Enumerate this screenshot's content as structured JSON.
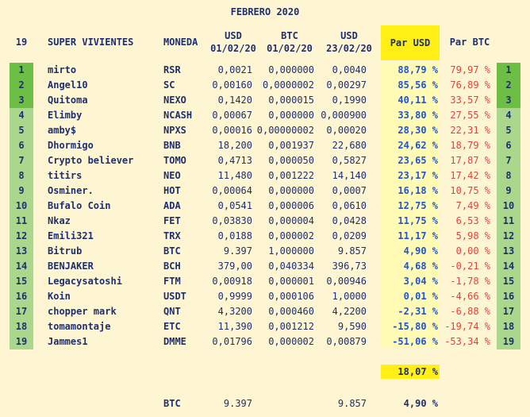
{
  "title": "FEBRERO 2020",
  "headers": {
    "rank": "19",
    "name": "SUPER VIVIENTES",
    "moneda": "MONEDA",
    "usd1_line1": "USD",
    "usd1_line2": "01/02/20",
    "btc1_line1": "BTC",
    "btc1_line2": "01/02/20",
    "usd2_line1": "USD",
    "usd2_line2": "23/02/20",
    "par_usd": "Par USD",
    "par_btc": "Par BTC"
  },
  "colors": {
    "background": "#fef6d3",
    "rank_top3": "#6cbe45",
    "rank_rest": "#a9d78c",
    "par_usd_column": "#fffbb4",
    "highlight_yellow": "#ffef14",
    "text_navy": "#1f2f6e",
    "text_blue": "#1f55d1",
    "text_red": "#e0433b"
  },
  "rows": [
    {
      "rank": "1",
      "name": "mirto",
      "moneda": "RSR",
      "usd1": "0,0021",
      "btc1": "0,000000",
      "usd2": "0,0040",
      "par_usd": "88,79 %",
      "par_btc": "79,97 %"
    },
    {
      "rank": "2",
      "name": "Angel10",
      "moneda": "SC",
      "usd1": "0,00160",
      "btc1": "0,0000002",
      "usd2": "0,00297",
      "par_usd": "85,56 %",
      "par_btc": "76,89 %"
    },
    {
      "rank": "3",
      "name": "Quitoma",
      "moneda": "NEXO",
      "usd1": "0,1420",
      "btc1": "0,000015",
      "usd2": "0,1990",
      "par_usd": "40,11 %",
      "par_btc": "33,57 %"
    },
    {
      "rank": "4",
      "name": "Elimby",
      "moneda": "NCASH",
      "usd1": "0,00067",
      "btc1": "0,000000",
      "usd2": "0,000900",
      "par_usd": "33,80 %",
      "par_btc": "27,55 %"
    },
    {
      "rank": "5",
      "name": "amby$",
      "moneda": "NPXS",
      "usd1": "0,00016",
      "btc1": "0,00000002",
      "usd2": "0,00020",
      "par_usd": "28,30 %",
      "par_btc": "22,31 %"
    },
    {
      "rank": "6",
      "name": "Dhormigo",
      "moneda": "BNB",
      "usd1": "18,200",
      "btc1": "0,001937",
      "usd2": "22,680",
      "par_usd": "24,62 %",
      "par_btc": "18,79 %"
    },
    {
      "rank": "7",
      "name": "Crypto believer",
      "moneda": "TOMO",
      "usd1": "0,4713",
      "btc1": "0,000050",
      "usd2": "0,5827",
      "par_usd": "23,65 %",
      "par_btc": "17,87 %"
    },
    {
      "rank": "8",
      "name": "titirs",
      "moneda": "NEO",
      "usd1": "11,480",
      "btc1": "0,001222",
      "usd2": "14,140",
      "par_usd": "23,17 %",
      "par_btc": "17,42 %"
    },
    {
      "rank": "9",
      "name": "Osminer.",
      "moneda": "HOT",
      "usd1": "0,00064",
      "btc1": "0,000000",
      "usd2": "0,0007",
      "par_usd": "16,18 %",
      "par_btc": "10,75 %"
    },
    {
      "rank": "10",
      "name": "Bufalo Coin",
      "moneda": "ADA",
      "usd1": "0,0541",
      "btc1": "0,000006",
      "usd2": "0,0610",
      "par_usd": "12,75 %",
      "par_btc": "7,49 %"
    },
    {
      "rank": "11",
      "name": "Nkaz",
      "moneda": "FET",
      "usd1": "0,03830",
      "btc1": "0,000004",
      "usd2": "0,0428",
      "par_usd": "11,75 %",
      "par_btc": "6,53 %"
    },
    {
      "rank": "12",
      "name": "Emili321",
      "moneda": "TRX",
      "usd1": "0,0188",
      "btc1": "0,000002",
      "usd2": "0,0209",
      "par_usd": "11,17 %",
      "par_btc": "5,98 %"
    },
    {
      "rank": "13",
      "name": "Bitrub",
      "moneda": "BTC",
      "usd1": "9.397",
      "btc1": "1,000000",
      "usd2": "9.857",
      "par_usd": "4,90 %",
      "par_btc": "0,00 %"
    },
    {
      "rank": "14",
      "name": "BENJAKER",
      "moneda": "BCH",
      "usd1": "379,00",
      "btc1": "0,040334",
      "usd2": "396,73",
      "par_usd": "4,68 %",
      "par_btc": "-0,21 %"
    },
    {
      "rank": "15",
      "name": "Legacysatoshi",
      "moneda": "FTM",
      "usd1": "0,00918",
      "btc1": "0,000001",
      "usd2": "0,00946",
      "par_usd": "3,04 %",
      "par_btc": "-1,78 %"
    },
    {
      "rank": "16",
      "name": "Koin",
      "moneda": "USDT",
      "usd1": "0,9999",
      "btc1": "0,000106",
      "usd2": "1,0000",
      "par_usd": "0,01 %",
      "par_btc": "-4,66 %"
    },
    {
      "rank": "17",
      "name": "chopper mark",
      "moneda": "QNT",
      "usd1": "4,3200",
      "btc1": "0,000460",
      "usd2": "4,2200",
      "par_usd": "-2,31 %",
      "par_btc": "-6,88 %"
    },
    {
      "rank": "18",
      "name": "tomamontaje",
      "moneda": "ETC",
      "usd1": "11,390",
      "btc1": "0,001212",
      "usd2": "9,590",
      "par_usd": "-15,80 %",
      "par_btc": "-19,74 %"
    },
    {
      "rank": "19",
      "name": "Jammes1",
      "moneda": "DMME",
      "usd1": "0,01796",
      "btc1": "0,000002",
      "usd2": "0,00879",
      "par_usd": "-51,06 %",
      "par_btc": "-53,34 %"
    }
  ],
  "total_par_usd": "18,07 %",
  "footer": {
    "moneda": "BTC",
    "usd1": "9.397",
    "usd2": "9.857",
    "par_usd": "4,90 %"
  }
}
